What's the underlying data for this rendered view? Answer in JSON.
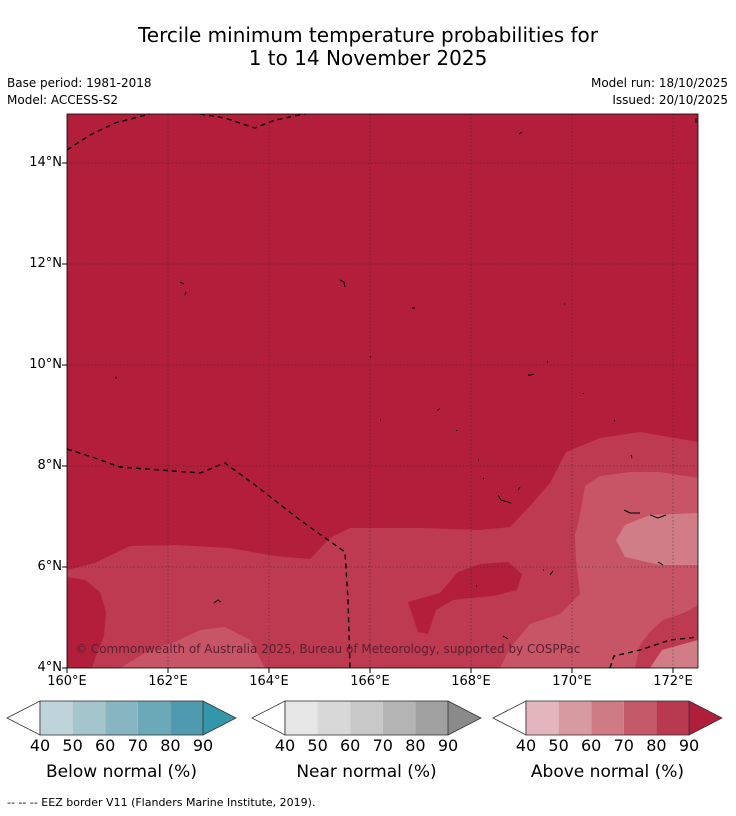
{
  "header": {
    "title_line1": "Tercile minimum temperature probabilities for",
    "title_line2": "1 to 14 November 2025",
    "base_period": "Base period: 1981-2018",
    "model": "Model: ACCESS-S2",
    "model_run": "Model run: 18/10/2025",
    "issued": "Issued: 20/10/2025"
  },
  "map": {
    "lat_labels": [
      "14°N",
      "12°N",
      "10°N",
      "8°N",
      "6°N",
      "4°N"
    ],
    "lon_labels": [
      "160°E",
      "162°E",
      "164°E",
      "166°E",
      "168°E",
      "170°E",
      "172°E"
    ],
    "copyright": "© Commonwealth of Australia 2025, Bureau of Meteorology, supported by COSPPac",
    "colors": {
      "above_90": "#b31e3a",
      "above_80": "#be3a51",
      "above_70": "#c75566",
      "above_60": "#d07d87"
    }
  },
  "colorbars": {
    "ticks": [
      "40",
      "50",
      "60",
      "70",
      "80",
      "90"
    ],
    "below": {
      "title": "Below normal (%)",
      "colors": [
        "#bfd4da",
        "#a5c5cc",
        "#87b5c2",
        "#6ba9b8",
        "#4f9aae",
        "#3397ab"
      ]
    },
    "near": {
      "title": "Near normal (%)",
      "colors": [
        "#e6e6e6",
        "#d8d8d8",
        "#c8c8c8",
        "#b4b4b4",
        "#a0a0a0",
        "#8a8a8a"
      ]
    },
    "above": {
      "title": "Above normal (%)",
      "colors": [
        "#e2b6bc",
        "#d89aa1",
        "#cf7b85",
        "#c45a69",
        "#b93a50",
        "#b01e3b"
      ]
    }
  },
  "footer": {
    "legend": "--  --  -- EEZ border V11 (Flanders Marine Institute, 2019)."
  }
}
